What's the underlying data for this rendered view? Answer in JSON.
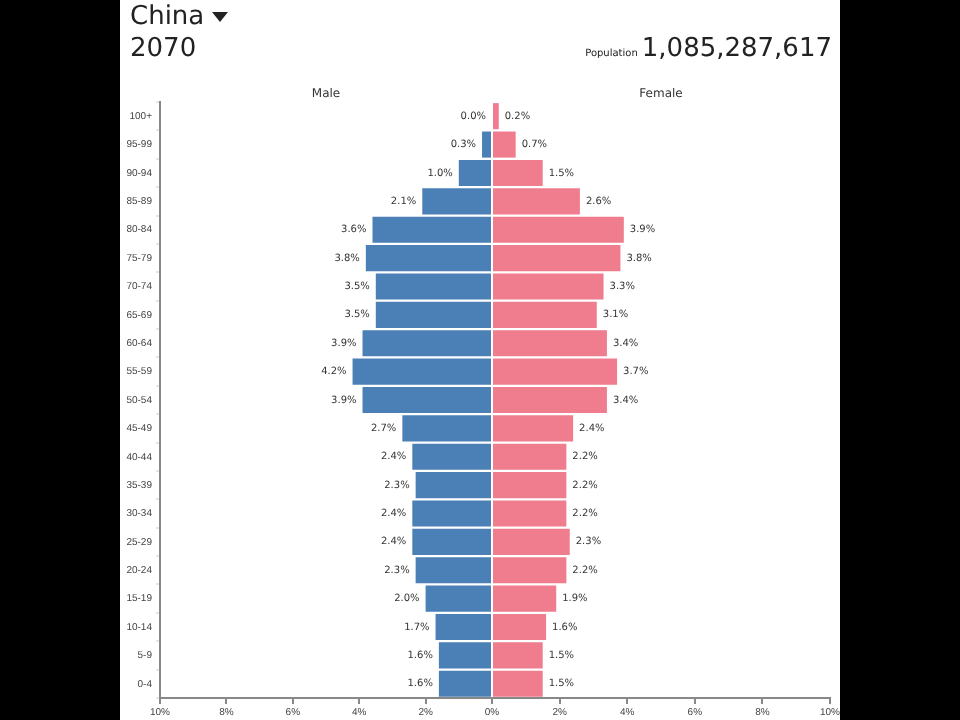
{
  "chart_data": [
    {
      "type": "bar",
      "title": "China",
      "subtitle": "2070",
      "annotations": [
        "Population",
        "1,085,287,617"
      ],
      "orientation": "horizontal",
      "grid": false,
      "legend": false,
      "categories": [
        "100+",
        "95-99",
        "90-94",
        "85-89",
        "80-84",
        "75-79",
        "70-74",
        "65-69",
        "60-64",
        "55-59",
        "50-54",
        "45-49",
        "40-44",
        "35-39",
        "30-34",
        "25-29",
        "20-24",
        "15-19",
        "10-14",
        "5-9",
        "0-4"
      ],
      "xlim": [
        10,
        0
      ],
      "xticks": [
        {
          "value": 10,
          "label": "10%"
        },
        {
          "value": 8,
          "label": "8%"
        },
        {
          "value": 6,
          "label": "6%"
        },
        {
          "value": 4,
          "label": "4%"
        },
        {
          "value": 2,
          "label": "2%"
        },
        {
          "value": 0,
          "label": "0%"
        }
      ],
      "series": [
        {
          "name": "Male",
          "color": "#4a80b6",
          "values": [
            0.0,
            0.3,
            1.0,
            2.1,
            3.6,
            3.8,
            3.5,
            3.5,
            3.9,
            4.2,
            3.9,
            2.7,
            2.4,
            2.3,
            2.4,
            2.4,
            2.3,
            2.0,
            1.7,
            1.6,
            1.6
          ],
          "value_labels": [
            "0.0%",
            "0.3%",
            "1.0%",
            "2.1%",
            "3.6%",
            "3.8%",
            "3.5%",
            "3.5%",
            "3.9%",
            "4.2%",
            "3.9%",
            "2.7%",
            "2.4%",
            "2.3%",
            "2.4%",
            "2.4%",
            "2.3%",
            "2.0%",
            "1.7%",
            "1.6%",
            "1.6%"
          ]
        }
      ]
    },
    {
      "type": "bar",
      "orientation": "horizontal",
      "grid": false,
      "legend": false,
      "tick_labels": "x",
      "xlim": [
        0,
        10
      ],
      "xticks": [
        {
          "value": 0,
          "label": null
        },
        {
          "value": 2,
          "label": "2%"
        },
        {
          "value": 4,
          "label": "4%"
        },
        {
          "value": 6,
          "label": "6%"
        },
        {
          "value": 8,
          "label": "8%"
        },
        {
          "value": 10,
          "label": "10%"
        }
      ],
      "series": [
        {
          "name": "Female",
          "color": "#ef7d8d",
          "values": [
            0.2,
            0.7,
            1.5,
            2.6,
            3.9,
            3.8,
            3.3,
            3.1,
            3.4,
            3.7,
            3.4,
            2.4,
            2.2,
            2.2,
            2.2,
            2.3,
            2.2,
            1.9,
            1.6,
            1.5,
            1.5
          ],
          "value_labels": [
            "0.2%",
            "0.7%",
            "1.5%",
            "2.6%",
            "3.9%",
            "3.8%",
            "3.3%",
            "3.1%",
            "3.4%",
            "3.7%",
            "3.4%",
            "2.4%",
            "2.2%",
            "2.2%",
            "2.2%",
            "2.3%",
            "2.2%",
            "1.9%",
            "1.6%",
            "1.5%",
            "1.5%"
          ]
        }
      ]
    }
  ]
}
